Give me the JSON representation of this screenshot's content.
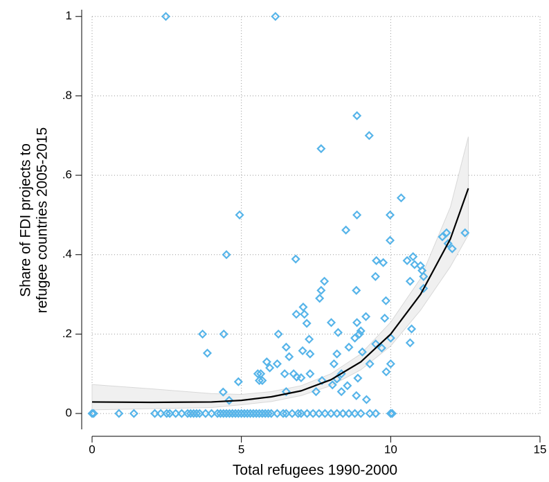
{
  "chart_data": {
    "type": "scatter",
    "xlabel": "Total refugees 1990-2000",
    "ylabel": [
      "Share of FDI projects to",
      "refugee countries 2005-2015"
    ],
    "color": "#56b4e9",
    "x": [
      0,
      0.05,
      0.9,
      1.4,
      2.1,
      2.3,
      2.5,
      2.6,
      2.8,
      3.0,
      3.2,
      3.3,
      3.4,
      3.5,
      3.6,
      3.8,
      4.0,
      4.2,
      4.3,
      4.4,
      4.5,
      4.6,
      4.7,
      4.8,
      4.9,
      5.0,
      5.1,
      5.2,
      5.3,
      5.4,
      5.5,
      5.6,
      5.7,
      5.8,
      5.9,
      6.0,
      6.2,
      6.4,
      6.5,
      6.7,
      6.9,
      7.0,
      7.2,
      7.4,
      7.6,
      7.8,
      8.0,
      8.2,
      8.4,
      8.6,
      8.8,
      9.0,
      9.3,
      9.5,
      10.0,
      10.05,
      2.47,
      6.14,
      8.87,
      9.28,
      7.67,
      10.35,
      4.94,
      8.87,
      9.98,
      8.5,
      12.49,
      11.87,
      11.73,
      11.92,
      12.06,
      9.98,
      4.5,
      6.82,
      9.52,
      9.75,
      10.55,
      10.75,
      10.8,
      10.65,
      11.0,
      11.05,
      11.1,
      11.1,
      7.78,
      7.67,
      7.62,
      8.85,
      9.49,
      9.84,
      7.07,
      7.11,
      6.84,
      7.19,
      7.27,
      9.17,
      9.8,
      8.01,
      8.87,
      8.95,
      9.0,
      8.24,
      8.8,
      10.0,
      10.7,
      10.65,
      3.7,
      4.41,
      6.24,
      3.86,
      9.5,
      9.7,
      8.6,
      7.05,
      6.5,
      6.6,
      6.2,
      5.85,
      5.95,
      5.55,
      5.65,
      5.6,
      5.7,
      6.45,
      6.75,
      6.85,
      7.0,
      7.3,
      7.3,
      8.1,
      8.2,
      8.35,
      8.2,
      8.05,
      8.9,
      9.05,
      9.3,
      9.85,
      10.0,
      7.7,
      7.5,
      8.35,
      8.55,
      6.5,
      4.9,
      4.39,
      4.59,
      9.19,
      8.85
    ],
    "values": [
      0,
      0,
      0,
      0,
      0,
      0,
      0,
      0,
      0,
      0,
      0,
      0,
      0,
      0,
      0,
      0,
      0,
      0,
      0,
      0,
      0,
      0,
      0,
      0,
      0,
      0,
      0,
      0,
      0,
      0,
      0,
      0,
      0,
      0,
      0,
      0,
      0,
      0,
      0,
      0,
      0,
      0,
      0,
      0,
      0,
      0,
      0,
      0,
      0,
      0,
      0,
      0,
      0,
      0,
      0,
      0,
      1,
      1,
      0.75,
      0.7,
      0.667,
      0.543,
      0.5,
      0.5,
      0.5,
      0.462,
      0.455,
      0.455,
      0.445,
      0.428,
      0.415,
      0.436,
      0.4,
      0.389,
      0.385,
      0.38,
      0.385,
      0.395,
      0.375,
      0.333,
      0.372,
      0.36,
      0.345,
      0.315,
      0.333,
      0.31,
      0.29,
      0.31,
      0.345,
      0.284,
      0.268,
      0.25,
      0.25,
      0.227,
      0.187,
      0.244,
      0.24,
      0.229,
      0.229,
      0.2,
      0.208,
      0.204,
      0.19,
      0.19,
      0.213,
      0.178,
      0.2,
      0.2,
      0.2,
      0.152,
      0.175,
      0.165,
      0.167,
      0.158,
      0.167,
      0.143,
      0.125,
      0.13,
      0.115,
      0.1,
      0.1,
      0.083,
      0.083,
      0.1,
      0.1,
      0.092,
      0.09,
      0.1,
      0.15,
      0.125,
      0.15,
      0.1,
      0.087,
      0.072,
      0.089,
      0.155,
      0.125,
      0.105,
      0.125,
      0.083,
      0.055,
      0.055,
      0.07,
      0.055,
      0.08,
      0.054,
      0.033,
      0.035,
      0.045
    ],
    "fit": {
      "color": "#000000",
      "band_color": "#f0f0f0",
      "x": [
        0,
        2,
        4,
        5,
        6,
        7,
        8,
        9,
        10,
        11,
        12,
        12.6
      ],
      "values": [
        0.029,
        0.028,
        0.029,
        0.033,
        0.042,
        0.057,
        0.085,
        0.13,
        0.2,
        0.3,
        0.44,
        0.567
      ],
      "lower": [
        0.009,
        0.012,
        0.015,
        0.022,
        0.03,
        0.045,
        0.07,
        0.11,
        0.17,
        0.26,
        0.37,
        0.45
      ],
      "upper": [
        0.073,
        0.062,
        0.05,
        0.048,
        0.055,
        0.07,
        0.1,
        0.15,
        0.23,
        0.34,
        0.52,
        0.697
      ]
    },
    "xlim": [
      0,
      15
    ],
    "xticks": [
      0,
      5,
      10,
      15
    ],
    "ylim": [
      -0.04,
      1.017
    ],
    "yticks": [
      0,
      {
        "value": 0.2,
        "label": ".2"
      },
      {
        "value": 0.4,
        "label": ".4"
      },
      {
        "value": 0.6,
        "label": ".6"
      },
      {
        "value": 0.8,
        "label": ".8"
      },
      1
    ],
    "grid": true
  }
}
